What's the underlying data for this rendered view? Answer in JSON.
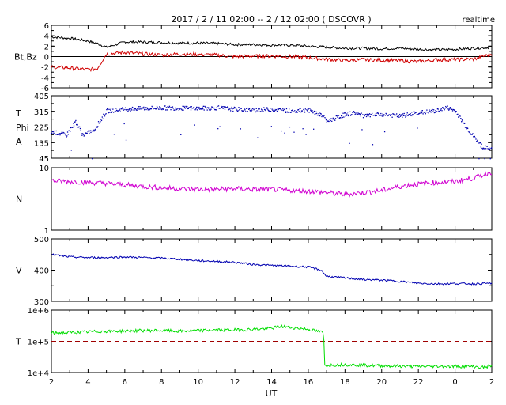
{
  "header": {
    "title": "2017 / 2 / 11  02:00 --  2 / 12  02:00 ( DSCOVR )",
    "mode": "realtime"
  },
  "colors": {
    "bt": "#000000",
    "bz": "#d00000",
    "phi": "#0000b0",
    "n": "#d000d0",
    "v": "#0000b0",
    "t": "#00dd00",
    "ref": "#a00000"
  },
  "chart_data": {
    "type": "line",
    "x_unit_label": "UT",
    "x_ticks": [
      "2",
      "4",
      "6",
      "8",
      "10",
      "12",
      "14",
      "16",
      "18",
      "20",
      "22",
      "0",
      "2"
    ],
    "x_range_hours_from_0200": [
      0,
      24
    ],
    "panels": [
      {
        "id": "mag",
        "ylabel": "Bt,Bz",
        "yscale": "linear",
        "ylim": [
          -6,
          6
        ],
        "ytick_labels": [
          "6",
          "4",
          "2",
          "0",
          "-2",
          "-4",
          "-6"
        ],
        "ytick_values": [
          6,
          4,
          2,
          0,
          -2,
          -4,
          -6
        ],
        "hline": 0,
        "series": [
          {
            "key": "bt",
            "x": [
              0,
              1,
              2,
              2.5,
              3,
              4,
              5,
              6,
              7,
              8,
              9,
              10,
              11,
              12,
              13,
              14,
              15,
              16,
              17,
              18,
              19,
              20,
              21,
              22,
              23,
              24
            ],
            "y": [
              3.8,
              3.5,
              3.0,
              2.5,
              1.8,
              2.8,
              2.8,
              2.7,
              2.6,
              2.6,
              2.5,
              2.3,
              2.3,
              2.2,
              2.2,
              2.0,
              1.8,
              1.6,
              1.6,
              1.5,
              1.6,
              1.4,
              1.3,
              1.4,
              1.6,
              1.8
            ]
          },
          {
            "key": "bz",
            "x": [
              0,
              1,
              2,
              2.5,
              3,
              4,
              5,
              6,
              7,
              8,
              9,
              10,
              11,
              12,
              13,
              14,
              15,
              16,
              17,
              18,
              19,
              20,
              21,
              22,
              23,
              24
            ],
            "y": [
              -2.0,
              -2.2,
              -2.5,
              -2.3,
              0.5,
              0.8,
              0.5,
              0.3,
              0.5,
              0.4,
              0.3,
              0.0,
              0.1,
              0.1,
              0.0,
              -0.2,
              -0.5,
              -0.8,
              -0.6,
              -0.7,
              -0.8,
              -1.0,
              -0.6,
              -0.6,
              -0.5,
              0.5
            ]
          }
        ]
      },
      {
        "id": "phi",
        "ylabel_lines": [
          "T",
          "Phi",
          "A"
        ],
        "yscale": "linear",
        "ylim": [
          45,
          405
        ],
        "ytick_labels": [
          "405",
          "315",
          "225",
          "135",
          "45"
        ],
        "ytick_values": [
          405,
          315,
          225,
          135,
          45
        ],
        "hline": 225,
        "series": [
          {
            "key": "phi",
            "x": [
              0,
              0.8,
              1.3,
              1.7,
              2.3,
              3,
              4,
              5,
              6,
              7,
              8,
              9,
              10,
              11,
              12,
              13,
              14,
              14.8,
              15,
              16,
              16.5,
              17,
              18,
              19,
              20,
              21,
              21.5,
              22,
              22.5,
              23,
              23.5,
              24
            ],
            "y": [
              200,
              180,
              260,
              180,
              210,
              320,
              330,
              335,
              338,
              336,
              335,
              338,
              330,
              325,
              330,
              320,
              325,
              290,
              260,
              300,
              310,
              290,
              300,
              290,
              310,
              320,
              340,
              320,
              240,
              170,
              110,
              100
            ]
          }
        ]
      },
      {
        "id": "n",
        "ylabel": "N",
        "yscale": "log",
        "ylim": [
          1,
          10
        ],
        "ytick_labels": [
          "10",
          "1"
        ],
        "ytick_values": [
          10,
          1
        ],
        "series": [
          {
            "key": "n",
            "x": [
              0,
              1,
              2,
              3,
              4,
              5,
              6,
              7,
              8,
              9,
              10,
              11,
              12,
              13,
              14,
              15,
              16,
              17,
              18,
              19,
              20,
              21,
              22,
              23,
              24
            ],
            "y": [
              6.2,
              6.0,
              5.8,
              5.6,
              5.3,
              5.0,
              4.8,
              4.6,
              4.5,
              4.5,
              4.6,
              4.5,
              4.5,
              4.3,
              4.2,
              4.0,
              3.7,
              4.0,
              4.3,
              5.0,
              5.5,
              5.8,
              6.0,
              6.8,
              8.5
            ]
          }
        ]
      },
      {
        "id": "v",
        "ylabel": "V",
        "yscale": "linear",
        "ylim": [
          300,
          500
        ],
        "ytick_labels": [
          "500",
          "400",
          "300"
        ],
        "ytick_values": [
          500,
          400,
          300
        ],
        "series": [
          {
            "key": "v",
            "x": [
              0,
              1,
              2,
              3,
              4,
              5,
              6,
              7,
              8,
              9,
              10,
              11,
              12,
              13,
              14,
              14.7,
              15,
              16,
              17,
              18,
              19,
              20,
              21,
              22,
              23,
              24
            ],
            "y": [
              450,
              442,
              440,
              440,
              442,
              440,
              438,
              435,
              430,
              428,
              425,
              418,
              415,
              413,
              410,
              400,
              380,
              375,
              370,
              368,
              364,
              358,
              356,
              357,
              356,
              358
            ]
          }
        ]
      },
      {
        "id": "t",
        "ylabel": "T",
        "yscale": "log",
        "ylim": [
          10000,
          1000000
        ],
        "ytick_labels": [
          "1e+6",
          "1e+5",
          "1e+4"
        ],
        "ytick_values": [
          1000000,
          100000,
          10000
        ],
        "hline": 100000,
        "series": [
          {
            "key": "t",
            "x": [
              0,
              1,
              2,
              3,
              4,
              5,
              6,
              7,
              8,
              9,
              10,
              11,
              12,
              12.5,
              13,
              14,
              14.8,
              14.9,
              16,
              17,
              18,
              19,
              20,
              21,
              22,
              23,
              23.6,
              24
            ],
            "y": [
              180000,
              190000,
              200000,
              210000,
              210000,
              220000,
              220000,
              210000,
              220000,
              230000,
              230000,
              240000,
              260000,
              300000,
              280000,
              240000,
              190000,
              17000,
              18000,
              17000,
              16500,
              16000,
              15500,
              16000,
              15800,
              15500,
              14500,
              17000
            ]
          }
        ]
      }
    ]
  }
}
